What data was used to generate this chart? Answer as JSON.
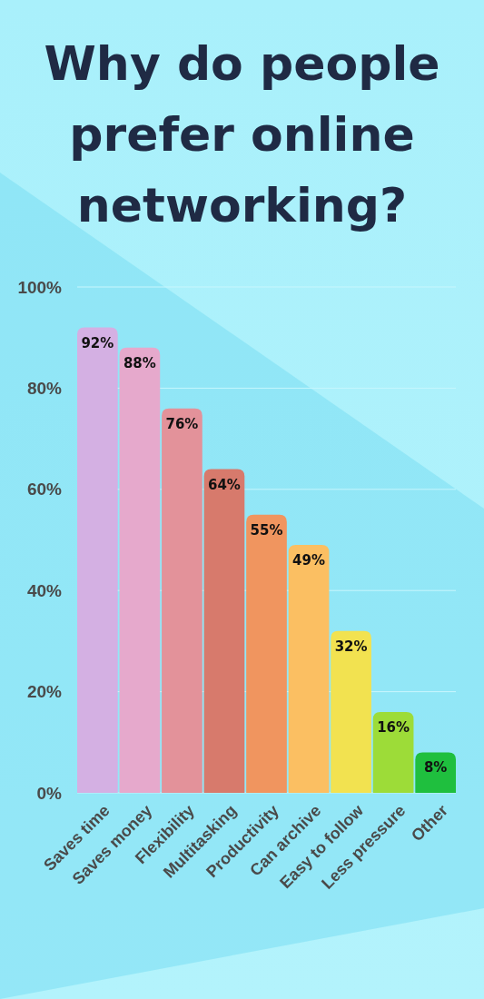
{
  "chart_data": {
    "type": "bar",
    "title": "Why do people prefer online networking?",
    "categories": [
      "Saves time",
      "Saves money",
      "Flexibility",
      "Multitasking",
      "Productivity",
      "Can archive",
      "Easy to follow",
      "Less pressure",
      "Other"
    ],
    "values": [
      92,
      88,
      76,
      64,
      55,
      49,
      32,
      16,
      8
    ],
    "colors": [
      "#d4b0e3",
      "#e6a9cc",
      "#e3929a",
      "#d77a6c",
      "#f0955f",
      "#fbbf62",
      "#f2e250",
      "#9ddc38",
      "#1fbf3e"
    ],
    "value_labels": [
      "92%",
      "88%",
      "76%",
      "64%",
      "55%",
      "49%",
      "32%",
      "16%",
      "8%"
    ],
    "ylim": [
      0,
      100
    ],
    "yticks": [
      {
        "value": 0,
        "label": "0%"
      },
      {
        "value": 20,
        "label": "20%"
      },
      {
        "value": 40,
        "label": "40%"
      },
      {
        "value": 60,
        "label": "60%"
      },
      {
        "value": 80,
        "label": "80%"
      },
      {
        "value": 100,
        "label": "100%"
      }
    ],
    "grid": "y"
  }
}
